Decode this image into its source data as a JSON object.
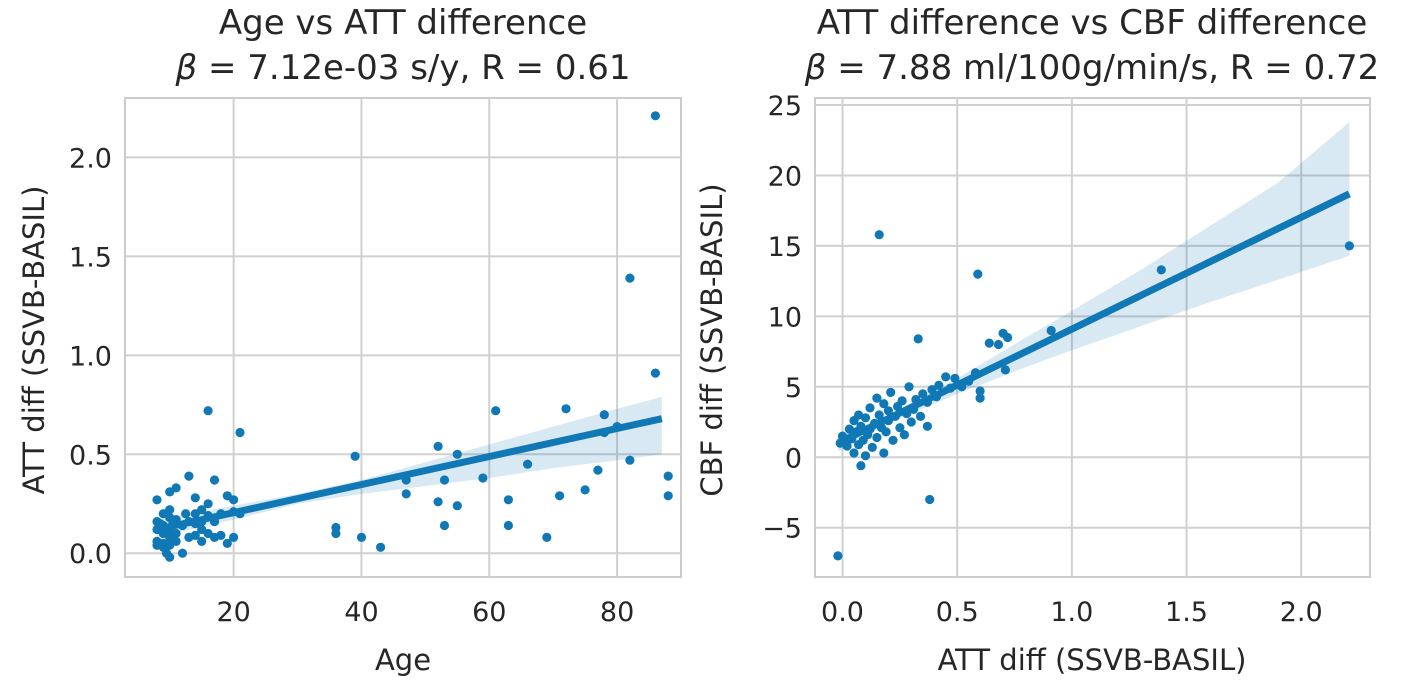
{
  "chart_data": [
    {
      "type": "scatter",
      "title": "Age vs ATT difference",
      "subtitle": "β = 7.12e-03 s/y, R = 0.61",
      "xlabel": "Age",
      "ylabel": "ATT diff (SSVB-BASIL)",
      "xlim": [
        3,
        90
      ],
      "ylim": [
        -0.12,
        2.3
      ],
      "xticks": [
        20,
        40,
        60,
        80
      ],
      "yticks": [
        0.0,
        0.5,
        1.0,
        1.5,
        2.0
      ],
      "ytick_labels": [
        "0.0",
        "0.5",
        "1.0",
        "1.5",
        "2.0"
      ],
      "grid": true,
      "regression": {
        "x0": 8,
        "x1": 87,
        "y0": 0.12,
        "y1": 0.68,
        "ci": [
          [
            8,
            0.08,
            0.17
          ],
          [
            20,
            0.17,
            0.24
          ],
          [
            30,
            0.25,
            0.3
          ],
          [
            40,
            0.3,
            0.37
          ],
          [
            50,
            0.34,
            0.46
          ],
          [
            60,
            0.38,
            0.55
          ],
          [
            70,
            0.43,
            0.64
          ],
          [
            80,
            0.47,
            0.73
          ],
          [
            87,
            0.5,
            0.79
          ]
        ]
      },
      "points": [
        [
          8,
          0.27
        ],
        [
          8,
          0.16
        ],
        [
          8,
          0.12
        ],
        [
          8,
          0.06
        ],
        [
          8,
          0.04
        ],
        [
          8.5,
          0.15
        ],
        [
          9,
          0.2
        ],
        [
          9,
          0.14
        ],
        [
          9,
          0.1
        ],
        [
          9,
          0.05
        ],
        [
          9,
          0.03
        ],
        [
          9.5,
          0.0
        ],
        [
          10,
          0.31
        ],
        [
          10,
          0.22
        ],
        [
          10,
          0.18
        ],
        [
          10,
          0.12
        ],
        [
          10,
          0.08
        ],
        [
          10,
          0.04
        ],
        [
          10,
          -0.02
        ],
        [
          10.5,
          0.15
        ],
        [
          11,
          0.33
        ],
        [
          11,
          0.17
        ],
        [
          11,
          0.1
        ],
        [
          11,
          0.06
        ],
        [
          12,
          0.14
        ],
        [
          12,
          0.0
        ],
        [
          12.5,
          0.2
        ],
        [
          13,
          0.39
        ],
        [
          13,
          0.16
        ],
        [
          13,
          0.08
        ],
        [
          14,
          0.28
        ],
        [
          14,
          0.2
        ],
        [
          14,
          0.15
        ],
        [
          14,
          0.09
        ],
        [
          15,
          0.22
        ],
        [
          15,
          0.16
        ],
        [
          15,
          0.12
        ],
        [
          15,
          0.06
        ],
        [
          16,
          0.72
        ],
        [
          16,
          0.25
        ],
        [
          16,
          0.19
        ],
        [
          16,
          0.1
        ],
        [
          17,
          0.37
        ],
        [
          17,
          0.16
        ],
        [
          17,
          0.08
        ],
        [
          18,
          0.2
        ],
        [
          18,
          0.09
        ],
        [
          19,
          0.29
        ],
        [
          19,
          0.05
        ],
        [
          20,
          0.27
        ],
        [
          20,
          0.21
        ],
        [
          20,
          0.08
        ],
        [
          21,
          0.61
        ],
        [
          21,
          0.2
        ],
        [
          36,
          0.13
        ],
        [
          36,
          0.1
        ],
        [
          39,
          0.49
        ],
        [
          40,
          0.08
        ],
        [
          43,
          0.03
        ],
        [
          47,
          0.37
        ],
        [
          47,
          0.3
        ],
        [
          52,
          0.54
        ],
        [
          52,
          0.26
        ],
        [
          53,
          0.37
        ],
        [
          53,
          0.14
        ],
        [
          55,
          0.5
        ],
        [
          55,
          0.24
        ],
        [
          59,
          0.38
        ],
        [
          61,
          0.72
        ],
        [
          63,
          0.27
        ],
        [
          63,
          0.14
        ],
        [
          66,
          0.45
        ],
        [
          69,
          0.08
        ],
        [
          71,
          0.29
        ],
        [
          72,
          0.73
        ],
        [
          75,
          0.32
        ],
        [
          77,
          0.42
        ],
        [
          78,
          0.7
        ],
        [
          78,
          0.61
        ],
        [
          80,
          0.64
        ],
        [
          82,
          1.39
        ],
        [
          82,
          0.47
        ],
        [
          86,
          2.21
        ],
        [
          86,
          0.91
        ],
        [
          88,
          0.39
        ],
        [
          88,
          0.29
        ]
      ]
    },
    {
      "type": "scatter",
      "title": "ATT difference vs CBF difference",
      "subtitle": "β = 7.88 ml/100g/min/s, R = 0.72",
      "xlabel": "ATT diff (SSVB-BASIL)",
      "ylabel": "CBF diff (SSVB-BASIL)",
      "xlim": [
        -0.12,
        2.3
      ],
      "ylim": [
        -8.5,
        25.5
      ],
      "xticks": [
        0.0,
        0.5,
        1.0,
        1.5,
        2.0
      ],
      "xtick_labels": [
        "0.0",
        "0.5",
        "1.0",
        "1.5",
        "2.0"
      ],
      "yticks": [
        -5,
        0,
        5,
        10,
        15,
        20,
        25
      ],
      "ytick_labels": [
        "−5",
        "0",
        "5",
        "10",
        "15",
        "20",
        "25"
      ],
      "grid": true,
      "regression": {
        "x0": -0.02,
        "x1": 2.21,
        "y0": 1.0,
        "y1": 18.7,
        "ci": [
          [
            -0.02,
            0.4,
            1.5
          ],
          [
            0.2,
            2.4,
            3.0
          ],
          [
            0.5,
            4.5,
            5.6
          ],
          [
            0.8,
            6.4,
            8.5
          ],
          [
            1.0,
            7.6,
            10.4
          ],
          [
            1.3,
            9.3,
            13.3
          ],
          [
            1.6,
            11.0,
            16.4
          ],
          [
            1.9,
            12.6,
            19.5
          ],
          [
            2.21,
            14.3,
            23.8
          ]
        ]
      },
      "points": [
        [
          -0.02,
          -7.0
        ],
        [
          -0.01,
          1.0
        ],
        [
          0.0,
          1.5
        ],
        [
          0.02,
          0.8
        ],
        [
          0.03,
          2.0
        ],
        [
          0.04,
          1.3
        ],
        [
          0.05,
          0.3
        ],
        [
          0.05,
          2.6
        ],
        [
          0.06,
          1.8
        ],
        [
          0.07,
          0.9
        ],
        [
          0.07,
          3.0
        ],
        [
          0.08,
          -0.6
        ],
        [
          0.08,
          2.2
        ],
        [
          0.09,
          1.2
        ],
        [
          0.1,
          0.1
        ],
        [
          0.1,
          2.8
        ],
        [
          0.11,
          1.6
        ],
        [
          0.12,
          3.5
        ],
        [
          0.12,
          2.0
        ],
        [
          0.13,
          0.7
        ],
        [
          0.14,
          2.4
        ],
        [
          0.15,
          4.2
        ],
        [
          0.15,
          1.4
        ],
        [
          0.16,
          3.0
        ],
        [
          0.16,
          15.8
        ],
        [
          0.17,
          2.1
        ],
        [
          0.18,
          3.8
        ],
        [
          0.18,
          0.3
        ],
        [
          0.19,
          1.8
        ],
        [
          0.2,
          3.3
        ],
        [
          0.2,
          2.6
        ],
        [
          0.21,
          4.6
        ],
        [
          0.22,
          1.2
        ],
        [
          0.23,
          2.9
        ],
        [
          0.24,
          3.6
        ],
        [
          0.25,
          2.1
        ],
        [
          0.26,
          4.0
        ],
        [
          0.27,
          1.6
        ],
        [
          0.28,
          3.1
        ],
        [
          0.29,
          5.0
        ],
        [
          0.3,
          2.5
        ],
        [
          0.31,
          3.4
        ],
        [
          0.32,
          4.1
        ],
        [
          0.33,
          8.4
        ],
        [
          0.34,
          2.9
        ],
        [
          0.35,
          4.5
        ],
        [
          0.37,
          3.9
        ],
        [
          0.37,
          2.2
        ],
        [
          0.38,
          -3.0
        ],
        [
          0.39,
          4.8
        ],
        [
          0.41,
          4.3
        ],
        [
          0.42,
          5.1
        ],
        [
          0.45,
          5.7
        ],
        [
          0.47,
          4.9
        ],
        [
          0.49,
          5.6
        ],
        [
          0.52,
          5.0
        ],
        [
          0.55,
          5.4
        ],
        [
          0.58,
          6.0
        ],
        [
          0.59,
          13.0
        ],
        [
          0.6,
          4.7
        ],
        [
          0.6,
          4.2
        ],
        [
          0.64,
          8.1
        ],
        [
          0.68,
          8.0
        ],
        [
          0.7,
          8.8
        ],
        [
          0.71,
          6.2
        ],
        [
          0.72,
          8.5
        ],
        [
          0.91,
          9.0
        ],
        [
          1.39,
          13.3
        ],
        [
          2.21,
          15.0
        ]
      ]
    }
  ]
}
